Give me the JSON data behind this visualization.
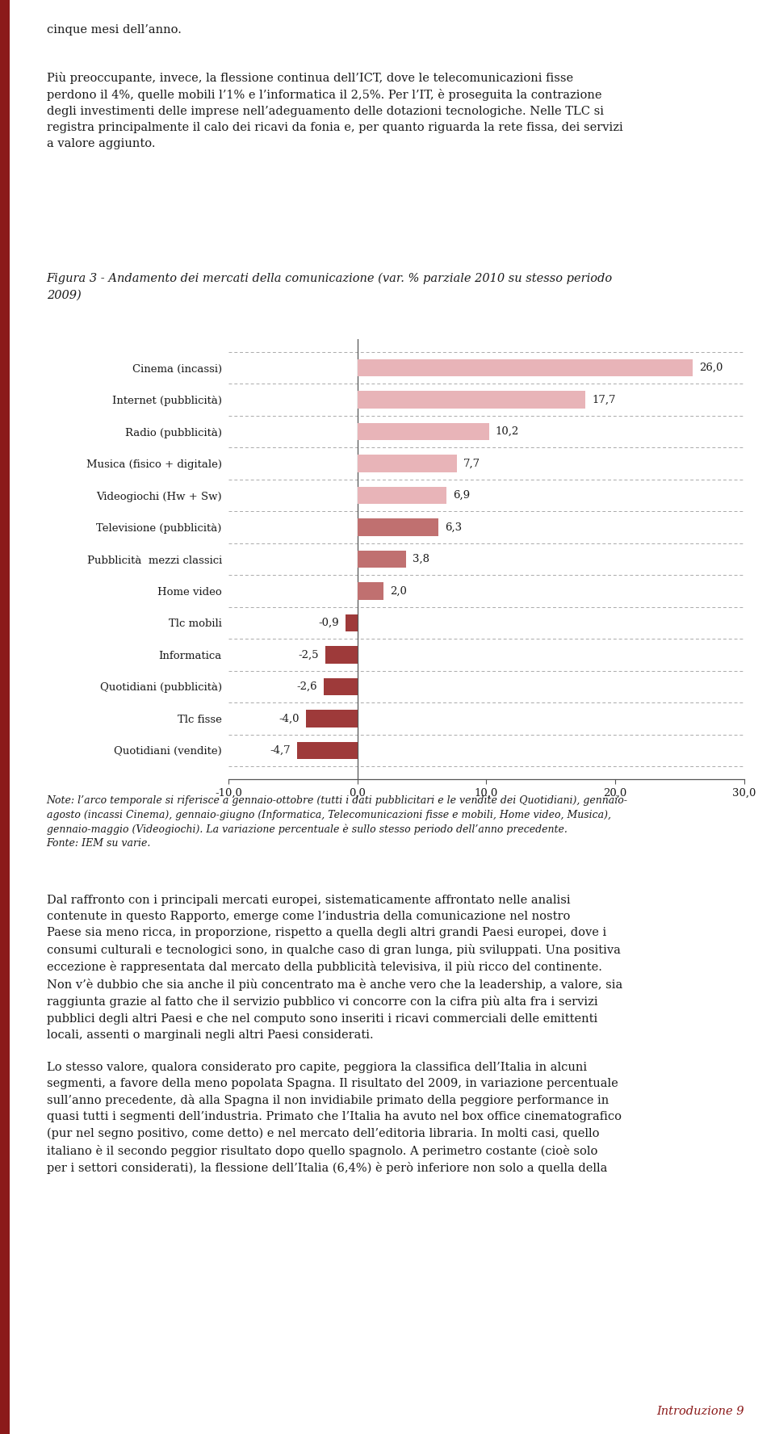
{
  "categories": [
    "Cinema (incassi)",
    "Internet (pubblicità)",
    "Radio (pubblicità)",
    "Musica (fisico + digitale)",
    "Videogiochi (Hw + Sw)",
    "Televisione (pubblicità)",
    "Pubblicità  mezzi classici",
    "Home video",
    "Tlc mobili",
    "Informatica",
    "Quotidiani (pubblicità)",
    "Tlc fisse",
    "Quotidiani (vendite)"
  ],
  "values": [
    26.0,
    17.7,
    10.2,
    7.7,
    6.9,
    6.3,
    3.8,
    2.0,
    -0.9,
    -2.5,
    -2.6,
    -4.0,
    -4.7
  ],
  "bar_color_light_pink": "#e8b4b8",
  "bar_color_medium_red": "#c07070",
  "bar_color_dark_red": "#9e3a3a",
  "xlim": [
    -10,
    30
  ],
  "xticks": [
    -10.0,
    0.0,
    10.0,
    20.0,
    30.0
  ],
  "xtick_labels": [
    "-10,0",
    "0,0",
    "10,0",
    "20,0",
    "30,0"
  ],
  "background_color": "#ffffff",
  "grid_color": "#aaaaaa",
  "figure_width": 9.6,
  "figure_height": 17.76,
  "top_text_1": "cinque mesi dell’anno.",
  "top_text_2": "Più preoccupante, invece, la flessione continua dell’ICT, dove le telecomunicazioni fisse perdono il 4%, quelle mobili l’1% e l’informatica il 2,5%. Per l’IT, è proseguita la contrazione degli investimenti delle imprese nell’adeguamento delle dotazioni tecnologiche. Nelle TLC si registra principalmente il calo dei ricavi da fonia e, per quanto riguarda la rete fissa, dei servizi a valore aggiunto.",
  "title_text": "Figura 3 - Andamento dei mercati della comunicazione (var. % parziale 2010 su stesso periodo 2009)",
  "note_text": "Note: l’arco temporale si riferisce a gennaio-ottobre (tutti i dati pubblicitari e le vendite dei Quotidiani), gennaio-agosto (incassi Cinema), gennaio-giugno (Informatica, Telecomunicazioni fisse e mobili, Home video, Musica), gennaio-maggio (Videogiochi). La variazione percentuale è sullo stesso periodo dell’anno precedente.\nFonte: IEM su varie.",
  "bottom_text": "Dal raffronto con i principali mercati europei, sistematicamente affrontato nelle analisi contenute in questo Rapporto, emerge come l’industria della comunicazione nel nostro Paese sia meno ricca, in proporzione, rispetto a quella degli altri grandi Paesi europei, dove i consumi culturali e tecnologici sono, in qualche caso di gran lunga, più sviluppati. Una positiva eccezione è rappresentata dal mercato della pubblicità televisiva, il più ricco del continente. Non v’è dubbio che sia anche il più concentrato ma è anche vero che la leadership, a valore, sia raggiunta grazie al fatto che il servizio pubblico vi concorre con la cifra più alta fra i servizi pubblici degli altri Paesi e che nel computo sono inseriti i ricavi commerciali delle emittenti locali, assenti o marginali negli altri Paesi considerati.\n\nLo stesso valore, qualora considerato pro capite, peggiora la classifica dell’Italia in alcuni segmenti, a favore della meno popolata Spagna. Il risultato del 2009, in variazione percentuale sull’anno precedente, dà alla Spagna il non invidiabile primato della peggiore performance in quasi tutti i segmenti dell’industria. Primato che l’Italia ha avuto nel box office cinematografico (pur nel segno positivo, come detto) e nel mercato dell’editoria libraria. In molti casi, quello italiano è il secondo peggior risultato dopo quello spagnolo. A perimetro costante (cioè solo per i settori considerati), la flessione dell’Italia (6,4%) è però inferiore non solo a quella della",
  "footer_text": "Introduzione 9",
  "left_bar_margin": "#8B1A1A",
  "page_margin_color": "#8B1A1A"
}
